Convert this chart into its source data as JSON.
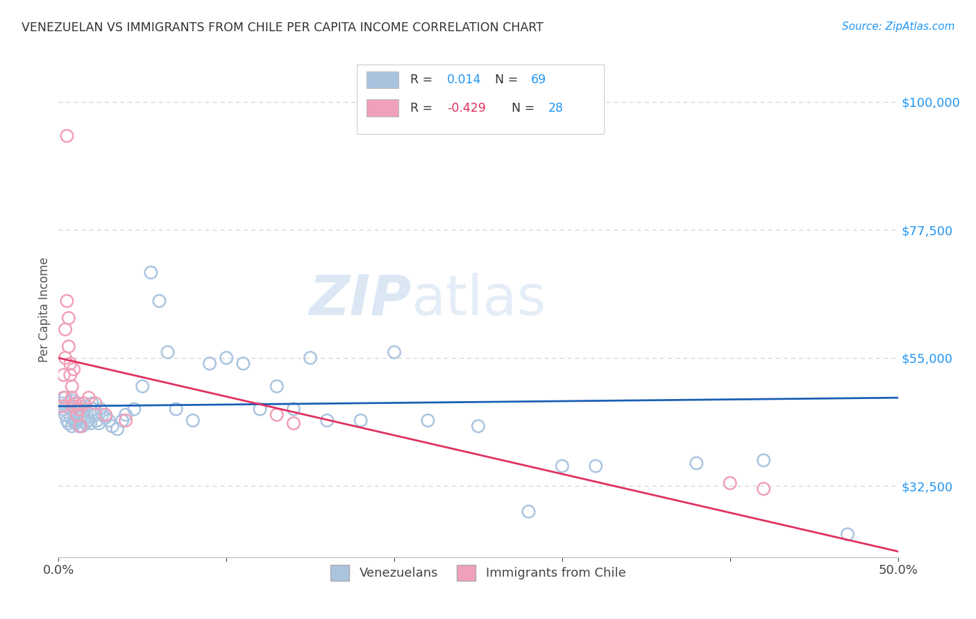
{
  "title": "VENEZUELAN VS IMMIGRANTS FROM CHILE PER CAPITA INCOME CORRELATION CHART",
  "source": "Source: ZipAtlas.com",
  "ylabel": "Per Capita Income",
  "xlim": [
    0.0,
    0.5
  ],
  "ylim": [
    20000,
    107000
  ],
  "yticks": [
    32500,
    55000,
    77500,
    100000
  ],
  "ytick_labels": [
    "$32,500",
    "$55,000",
    "$77,500",
    "$100,000"
  ],
  "xticks": [
    0.0,
    0.1,
    0.2,
    0.3,
    0.4,
    0.5
  ],
  "xtick_labels": [
    "0.0%",
    "",
    "",
    "",
    "",
    "50.0%"
  ],
  "watermark_zip": "ZIP",
  "watermark_atlas": "atlas",
  "background_color": "#ffffff",
  "grid_color": "#cccccc",
  "venezuelan_color": "#aac4e0",
  "chile_color": "#f0a0b8",
  "venezuelan_line_color": "#1a5fb4",
  "chile_line_color": "#e03060",
  "title_color": "#333333",
  "axis_label_color": "#555555",
  "ytick_color": "#2196F3",
  "source_color": "#2196F3",
  "legend_box_color_venz": "#aac4e0",
  "legend_box_color_chile": "#f0a0b8",
  "venz_scatter_x": [
    0.002,
    0.003,
    0.004,
    0.004,
    0.005,
    0.005,
    0.006,
    0.006,
    0.007,
    0.007,
    0.008,
    0.008,
    0.009,
    0.009,
    0.01,
    0.01,
    0.011,
    0.011,
    0.012,
    0.012,
    0.013,
    0.013,
    0.014,
    0.014,
    0.015,
    0.015,
    0.016,
    0.016,
    0.017,
    0.018,
    0.019,
    0.02,
    0.021,
    0.022,
    0.023,
    0.024,
    0.025,
    0.026,
    0.028,
    0.03,
    0.032,
    0.035,
    0.038,
    0.04,
    0.045,
    0.05,
    0.055,
    0.06,
    0.065,
    0.07,
    0.08,
    0.09,
    0.1,
    0.11,
    0.12,
    0.13,
    0.14,
    0.15,
    0.16,
    0.18,
    0.2,
    0.22,
    0.25,
    0.28,
    0.3,
    0.32,
    0.38,
    0.42,
    0.47
  ],
  "venz_scatter_y": [
    47000,
    46000,
    45000,
    48000,
    46500,
    44000,
    47000,
    43500,
    46000,
    44500,
    47500,
    43000,
    46000,
    44000,
    47000,
    43500,
    45500,
    44000,
    47000,
    43000,
    46000,
    44500,
    45000,
    43000,
    47000,
    44000,
    46500,
    43500,
    45000,
    44000,
    43500,
    47000,
    46000,
    45000,
    44000,
    43500,
    46000,
    45000,
    44500,
    44000,
    43000,
    42500,
    44000,
    45000,
    46000,
    50000,
    70000,
    65000,
    56000,
    46000,
    44000,
    54000,
    55000,
    54000,
    46000,
    50000,
    46000,
    55000,
    44000,
    44000,
    56000,
    44000,
    43000,
    28000,
    36000,
    36000,
    36500,
    37000,
    24000
  ],
  "chile_scatter_x": [
    0.002,
    0.003,
    0.003,
    0.004,
    0.004,
    0.005,
    0.005,
    0.006,
    0.006,
    0.007,
    0.007,
    0.008,
    0.008,
    0.009,
    0.009,
    0.01,
    0.011,
    0.012,
    0.013,
    0.015,
    0.018,
    0.022,
    0.028,
    0.04,
    0.13,
    0.14,
    0.4,
    0.42
  ],
  "chile_scatter_y": [
    46500,
    48000,
    52000,
    55000,
    60000,
    65000,
    94000,
    62000,
    57000,
    54000,
    52000,
    50000,
    48000,
    46500,
    53000,
    47000,
    45000,
    46000,
    43000,
    47000,
    48000,
    47000,
    45000,
    44000,
    45000,
    43500,
    33000,
    32000
  ],
  "venz_line_x0": 0.0,
  "venz_line_x1": 0.5,
  "venz_line_y0": 46500,
  "venz_line_y1": 48000,
  "chile_line_x0": 0.0,
  "chile_line_x1": 0.5,
  "chile_line_y0": 55000,
  "chile_line_y1": 21000
}
